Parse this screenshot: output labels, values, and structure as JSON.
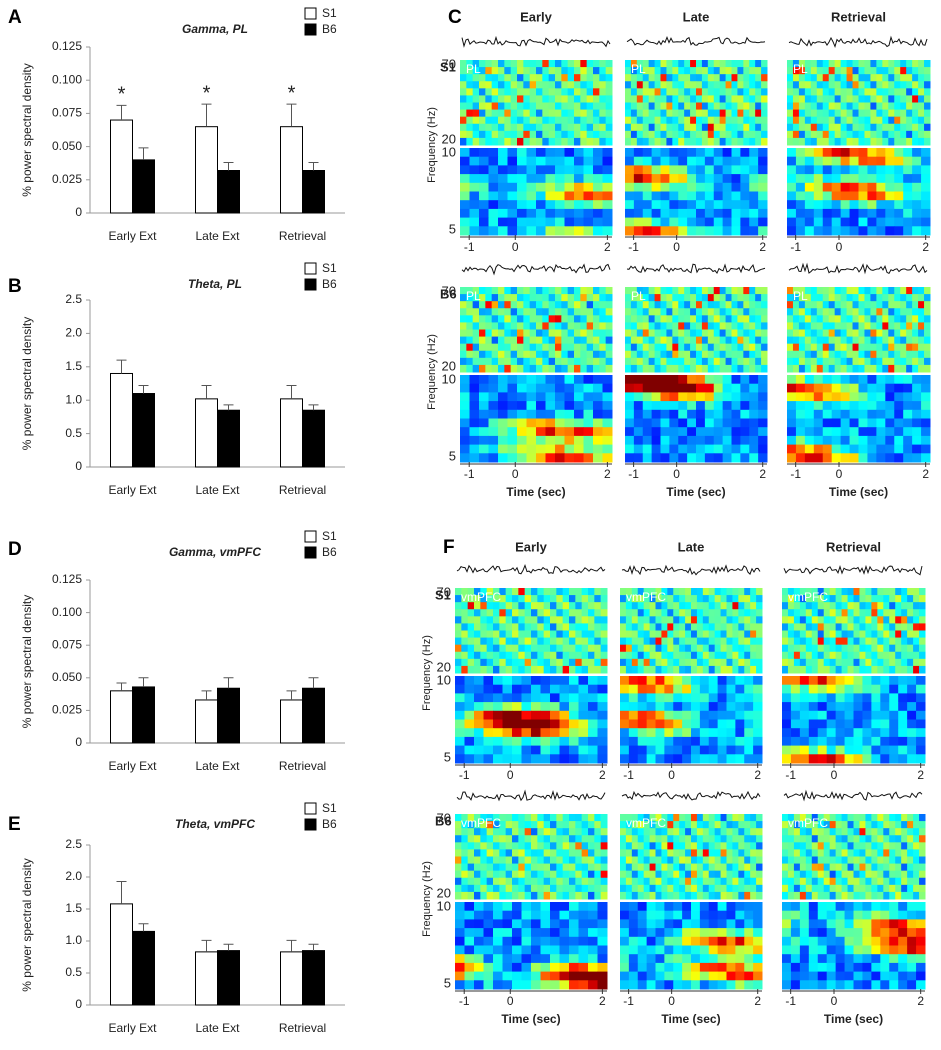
{
  "chart_data": [
    {
      "type": "bar",
      "panel": "A",
      "title": "Gamma, PL",
      "ylabel": "% power spectral density",
      "categories": [
        "Early Ext",
        "Late Ext",
        "Retrieval"
      ],
      "series": [
        {
          "name": "S1",
          "color": "#ffffff",
          "values": [
            0.07,
            0.065,
            0.065
          ],
          "errors": [
            0.011,
            0.017,
            0.017
          ]
        },
        {
          "name": "B6",
          "color": "#000000",
          "values": [
            0.04,
            0.032,
            0.032
          ],
          "errors": [
            0.009,
            0.006,
            0.006
          ]
        }
      ],
      "annotations": [
        "*",
        "*",
        "*"
      ],
      "ylim": [
        0,
        0.125
      ],
      "yticks": [
        0,
        0.025,
        {
          "value": 0.05,
          "label": "0.050"
        },
        0.075,
        {
          "value": 0.1,
          "label": "0.100"
        },
        0.125
      ]
    },
    {
      "type": "bar",
      "panel": "B",
      "title": "Theta, PL",
      "ylabel": "% power spectral density",
      "categories": [
        "Early Ext",
        "Late Ext",
        "Retrieval"
      ],
      "series": [
        {
          "name": "S1",
          "color": "#ffffff",
          "values": [
            1.4,
            1.02,
            1.02
          ],
          "errors": [
            0.2,
            0.2,
            0.2
          ]
        },
        {
          "name": "B6",
          "color": "#000000",
          "values": [
            1.1,
            0.85,
            0.85
          ],
          "errors": [
            0.12,
            0.08,
            0.08
          ]
        }
      ],
      "ylim": [
        0,
        2.5
      ],
      "yticks": [
        0,
        0.5,
        {
          "value": 1,
          "label": "1.0"
        },
        1.5,
        {
          "value": 2,
          "label": "2.0"
        },
        2.5
      ]
    },
    {
      "type": "bar",
      "panel": "D",
      "title": "Gamma, vmPFC",
      "ylabel": "% power spectral density",
      "categories": [
        "Early Ext",
        "Late Ext",
        "Retrieval"
      ],
      "series": [
        {
          "name": "S1",
          "color": "#ffffff",
          "values": [
            0.04,
            0.033,
            0.033
          ],
          "errors": [
            0.006,
            0.007,
            0.007
          ]
        },
        {
          "name": "B6",
          "color": "#000000",
          "values": [
            0.043,
            0.042,
            0.042
          ],
          "errors": [
            0.007,
            0.008,
            0.008
          ]
        }
      ],
      "ylim": [
        0,
        0.125
      ],
      "yticks": [
        0,
        0.025,
        {
          "value": 0.05,
          "label": "0.050"
        },
        0.075,
        {
          "value": 0.1,
          "label": "0.100"
        },
        0.125
      ]
    },
    {
      "type": "bar",
      "panel": "E",
      "title": "Theta, vmPFC",
      "ylabel": "% power spectral density",
      "categories": [
        "Early Ext",
        "Late Ext",
        "Retrieval"
      ],
      "series": [
        {
          "name": "S1",
          "color": "#ffffff",
          "values": [
            1.58,
            0.83,
            0.83
          ],
          "errors": [
            0.35,
            0.18,
            0.18
          ]
        },
        {
          "name": "B6",
          "color": "#000000",
          "values": [
            1.15,
            0.85,
            0.85
          ],
          "errors": [
            0.12,
            0.1,
            0.1
          ]
        }
      ],
      "ylim": [
        0,
        2.5
      ],
      "yticks": [
        0,
        0.5,
        {
          "value": 1,
          "label": "1.0"
        },
        1.5,
        {
          "value": 2,
          "label": "2.0"
        },
        2.5
      ]
    }
  ],
  "spectrograms": [
    {
      "panel": "C",
      "region": "PL",
      "columns": [
        "Early",
        "Late",
        "Retrieval"
      ],
      "rows": [
        "S1",
        "B6"
      ],
      "freq_ticks_high": [
        70,
        20
      ],
      "freq_ticks_low": [
        10,
        5
      ],
      "time_ticks": [
        -1,
        0,
        2
      ],
      "ylabel": "Frequency (Hz)",
      "xlabel": "Time (sec)"
    },
    {
      "panel": "F",
      "region": "vmPFC",
      "columns": [
        "Early",
        "Late",
        "Retrieval"
      ],
      "rows": [
        "S1",
        "B6"
      ],
      "freq_ticks_high": [
        70,
        20
      ],
      "freq_ticks_low": [
        10,
        5
      ],
      "time_ticks": [
        -1,
        0,
        2
      ],
      "ylabel": "Frequency (Hz)",
      "xlabel": "Time (sec)"
    }
  ]
}
